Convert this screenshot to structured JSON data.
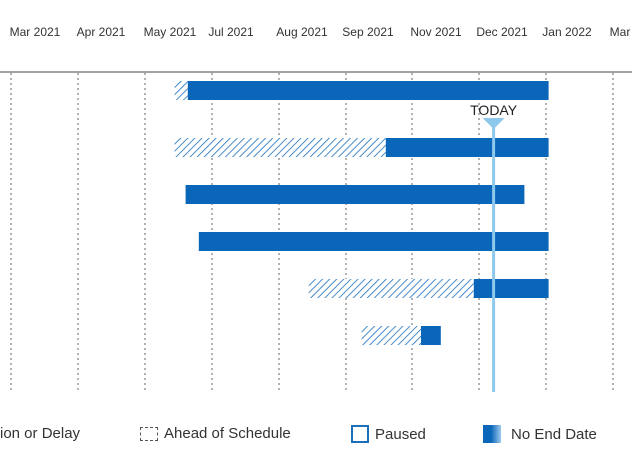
{
  "chart_data": {
    "type": "gantt",
    "x_ticks": [
      "Mar 2021",
      "Apr 2021",
      "May 2021",
      "Jul 2021",
      "Aug 2021",
      "Sep 2021",
      "Nov 2021",
      "Dec 2021",
      "Jan 2022",
      "Mar"
    ],
    "today": {
      "label": "TODAY",
      "date": "2021-11-05"
    },
    "colors": {
      "bar": "#0a66b8",
      "today": "#8ec8ec",
      "grid": "#666666",
      "hatch": "#1b6fba"
    },
    "tasks": [
      {
        "hatched": {
          "start": "2021-06-13",
          "end": "2021-06-19"
        },
        "solid": {
          "start": "2021-06-19",
          "end": "2021-11-30"
        }
      },
      {
        "hatched": {
          "start": "2021-06-13",
          "end": "2021-09-17"
        },
        "solid": {
          "start": "2021-09-17",
          "end": "2021-11-30"
        }
      },
      {
        "solid": {
          "start": "2021-06-18",
          "end": "2021-11-19"
        }
      },
      {
        "solid": {
          "start": "2021-06-24",
          "end": "2021-11-30"
        }
      },
      {
        "hatched": {
          "start": "2021-08-13",
          "end": "2021-10-27"
        },
        "solid": {
          "start": "2021-10-27",
          "end": "2021-11-30"
        }
      },
      {
        "hatched": {
          "start": "2021-09-06",
          "end": "2021-10-03"
        },
        "solid": {
          "start": "2021-10-03",
          "end": "2021-10-12"
        }
      }
    ]
  },
  "legend": {
    "extension": "ion or Delay",
    "ahead": "Ahead of Schedule",
    "paused": "Paused",
    "no_end": "No End Date"
  }
}
